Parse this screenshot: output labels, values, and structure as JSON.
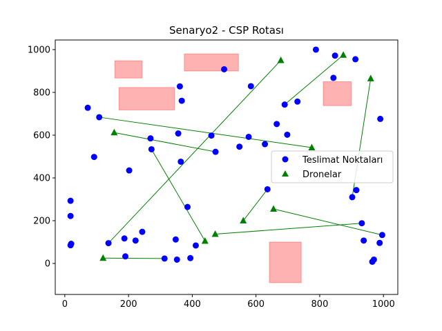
{
  "chart_data": {
    "type": "scatter",
    "title": "Senaryo2 - CSP Rotası",
    "xlabel": "",
    "ylabel": "",
    "xlim": [
      -30,
      1045
    ],
    "ylim": [
      -145,
      1045
    ],
    "xticks": [
      0,
      200,
      400,
      600,
      800,
      1000
    ],
    "yticks": [
      0,
      200,
      400,
      600,
      800,
      1000
    ],
    "grid": false,
    "legend_position": "center-right",
    "colors": {
      "delivery": "#0000ff",
      "drone": "#008000",
      "route": "#008000",
      "obstacle": "#ff0000"
    },
    "obstacles": [
      {
        "x": [
          157,
          243
        ],
        "y": [
          867,
          948
        ]
      },
      {
        "x": [
          170,
          344
        ],
        "y": [
          718,
          823
        ]
      },
      {
        "x": [
          375,
          545
        ],
        "y": [
          900,
          980
        ]
      },
      {
        "x": [
          811,
          899
        ],
        "y": [
          738,
          850
        ]
      },
      {
        "x": [
          642,
          742
        ],
        "y": [
          -90,
          100
        ]
      }
    ],
    "series": [
      {
        "name": "Teslimat Noktaları",
        "marker": "circle",
        "points": [
          [
            18,
            293
          ],
          [
            18,
            222
          ],
          [
            18,
            85
          ],
          [
            20,
            92
          ],
          [
            72,
            728
          ],
          [
            92,
            498
          ],
          [
            108,
            684
          ],
          [
            137,
            95
          ],
          [
            187,
            117
          ],
          [
            190,
            33
          ],
          [
            202,
            435
          ],
          [
            222,
            107
          ],
          [
            243,
            148
          ],
          [
            269,
            585
          ],
          [
            272,
            534
          ],
          [
            313,
            23
          ],
          [
            348,
            112
          ],
          [
            352,
            18
          ],
          [
            356,
            608
          ],
          [
            361,
            828
          ],
          [
            364,
            476
          ],
          [
            367,
            761
          ],
          [
            385,
            264
          ],
          [
            394,
            25
          ],
          [
            411,
            84
          ],
          [
            460,
            598
          ],
          [
            473,
            522
          ],
          [
            500,
            908
          ],
          [
            548,
            546
          ],
          [
            577,
            592
          ],
          [
            584,
            829
          ],
          [
            628,
            558
          ],
          [
            636,
            347
          ],
          [
            665,
            652
          ],
          [
            690,
            743
          ],
          [
            698,
            602
          ],
          [
            730,
            757
          ],
          [
            788,
            1000
          ],
          [
            843,
            868
          ],
          [
            848,
            972
          ],
          [
            902,
            310
          ],
          [
            912,
            955
          ],
          [
            915,
            343
          ],
          [
            932,
            188
          ],
          [
            938,
            107
          ],
          [
            965,
            8
          ],
          [
            970,
            18
          ],
          [
            988,
            96
          ],
          [
            990,
            676
          ],
          [
            996,
            133
          ]
        ]
      },
      {
        "name": "Dronelar",
        "marker": "triangle",
        "points": [
          [
            120,
            25
          ],
          [
            155,
            612
          ],
          [
            440,
            105
          ],
          [
            472,
            137
          ],
          [
            560,
            200
          ],
          [
            655,
            255
          ],
          [
            678,
            950
          ],
          [
            775,
            542
          ],
          [
            874,
            975
          ],
          [
            960,
            865
          ]
        ]
      }
    ],
    "routes": [
      [
        [
          120,
          25
        ],
        [
          313,
          23
        ]
      ],
      [
        [
          155,
          612
        ],
        [
          473,
          522
        ]
      ],
      [
        [
          440,
          105
        ],
        [
          272,
          534
        ]
      ],
      [
        [
          472,
          137
        ],
        [
          932,
          188
        ]
      ],
      [
        [
          560,
          200
        ],
        [
          636,
          347
        ]
      ],
      [
        [
          655,
          255
        ],
        [
          996,
          133
        ]
      ],
      [
        [
          678,
          950
        ],
        [
          137,
          95
        ]
      ],
      [
        [
          775,
          542
        ],
        [
          108,
          684
        ]
      ],
      [
        [
          874,
          975
        ],
        [
          690,
          743
        ]
      ],
      [
        [
          960,
          865
        ],
        [
          902,
          310
        ]
      ]
    ]
  }
}
